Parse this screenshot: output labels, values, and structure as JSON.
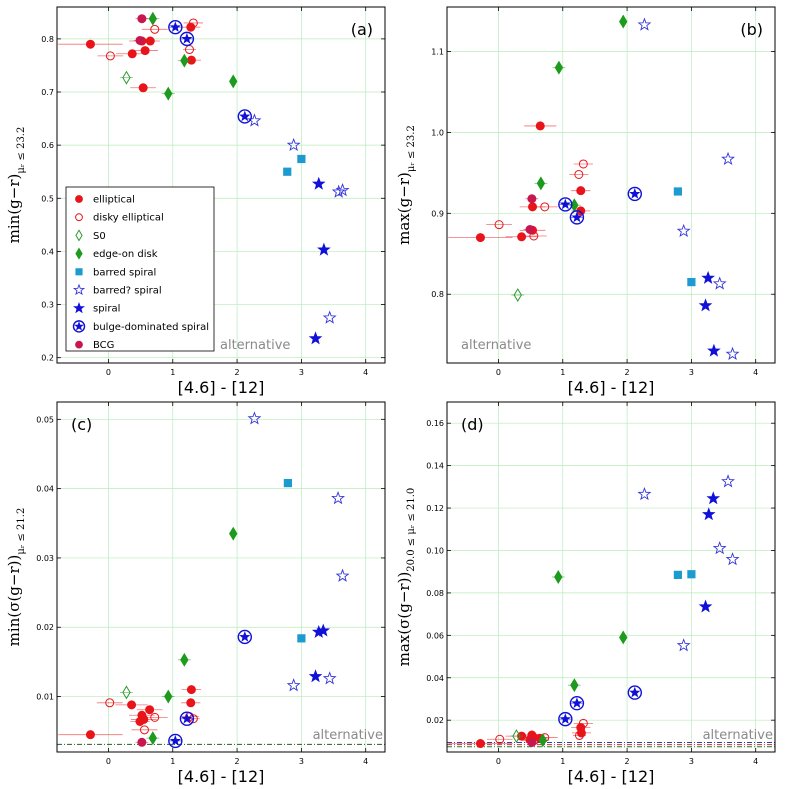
{
  "figure": {
    "watermark": "alternative",
    "xlabel": "[4.6] - [12]",
    "xticks": [
      "0",
      "1",
      "2",
      "3",
      "4"
    ],
    "legend": [
      {
        "key": "elliptical",
        "label": "elliptical",
        "marker": "circle",
        "fill": "#e8141a",
        "stroke": "#e8141a"
      },
      {
        "key": "disky",
        "label": "disky elliptical",
        "marker": "circle-open",
        "fill": "none",
        "stroke": "#e8141a"
      },
      {
        "key": "s0",
        "label": "S0",
        "marker": "diamond-open",
        "fill": "none",
        "stroke": "#2e9a2e"
      },
      {
        "key": "edgeon",
        "label": "edge-on disk",
        "marker": "diamond",
        "fill": "#1e9a1e",
        "stroke": "#1e9a1e"
      },
      {
        "key": "barred",
        "label": "barred spiral",
        "marker": "square",
        "fill": "#1c9bd0",
        "stroke": "#1c9bd0"
      },
      {
        "key": "barredq",
        "label": "barred? spiral",
        "marker": "star-open",
        "fill": "none",
        "stroke": "#3535d8"
      },
      {
        "key": "spiral",
        "label": "spiral",
        "marker": "star",
        "fill": "#1010d8",
        "stroke": "#1010d8"
      },
      {
        "key": "bulge",
        "label": "bulge-dominated spiral",
        "marker": "star-circle",
        "fill": "#1010d8",
        "stroke": "#1010d8"
      },
      {
        "key": "bcg",
        "label": "BCG",
        "marker": "circle",
        "fill": "#c8174e",
        "stroke": "#c8174e"
      }
    ]
  },
  "chart_data": [
    {
      "type": "scatter",
      "panel": "(a)",
      "ylabel_tex": "min(g−r)",
      "ylabel_sub": "μᵣ ≤ 23.2",
      "xlim": [
        -0.8,
        4.3
      ],
      "ylim": [
        0.19,
        0.86
      ],
      "xticks": [
        0,
        1,
        2,
        3,
        4
      ],
      "yticks": [
        0.2,
        0.3,
        0.4,
        0.5,
        0.6,
        0.7,
        0.8
      ],
      "ytick_labels": [
        "0.2",
        "0.3",
        "0.4",
        "0.5",
        "0.6",
        "0.7",
        "0.8"
      ],
      "has_legend": true,
      "series": [
        {
          "key": "elliptical",
          "points": [
            [
              -0.28,
              0.79,
              0.5
            ],
            [
              0.37,
              0.772,
              0.25
            ],
            [
              0.52,
              0.796,
              0.2
            ],
            [
              0.57,
              0.778,
              0.2
            ],
            [
              0.54,
              0.708,
              0.2
            ],
            [
              0.65,
              0.796,
              0.15
            ],
            [
              1.28,
              0.822,
              0.15
            ],
            [
              1.29,
              0.76,
              0.15
            ]
          ]
        },
        {
          "key": "disky",
          "points": [
            [
              0.03,
              0.768,
              0.2
            ],
            [
              0.72,
              0.818,
              0.2
            ],
            [
              1.32,
              0.83,
              0.15
            ],
            [
              1.26,
              0.78,
              0.1
            ]
          ]
        },
        {
          "key": "s0",
          "points": [
            [
              0.28,
              0.727,
              0.1
            ]
          ]
        },
        {
          "key": "edgeon",
          "points": [
            [
              0.69,
              0.838,
              0.1
            ],
            [
              0.93,
              0.697,
              0.1
            ],
            [
              1.18,
              0.759,
              0.1
            ],
            [
              1.94,
              0.72,
              0.05
            ]
          ]
        },
        {
          "key": "barred",
          "points": [
            [
              2.78,
              0.55,
              0
            ],
            [
              3.0,
              0.574,
              0
            ]
          ]
        },
        {
          "key": "barredq",
          "points": [
            [
              2.27,
              0.646,
              0
            ],
            [
              2.88,
              0.6,
              0
            ],
            [
              3.58,
              0.512,
              0
            ],
            [
              3.64,
              0.515,
              0
            ],
            [
              3.44,
              0.275,
              0
            ]
          ]
        },
        {
          "key": "spiral",
          "points": [
            [
              3.27,
              0.527,
              0
            ],
            [
              3.35,
              0.403,
              0
            ],
            [
              3.22,
              0.236,
              0
            ]
          ]
        },
        {
          "key": "bulge",
          "points": [
            [
              1.04,
              0.822,
              0.1
            ],
            [
              1.22,
              0.8,
              0.1
            ],
            [
              2.12,
              0.654,
              0.05
            ]
          ]
        },
        {
          "key": "bcg",
          "points": [
            [
              0.52,
              0.838,
              0.1
            ],
            [
              0.49,
              0.797,
              0.1
            ]
          ]
        }
      ],
      "hlines": []
    },
    {
      "type": "scatter",
      "panel": "(b)",
      "ylabel_tex": "max(g−r)",
      "ylabel_sub": "μᵣ ≤ 23.2",
      "xlim": [
        -0.8,
        4.3
      ],
      "ylim": [
        0.715,
        1.155
      ],
      "xticks": [
        0,
        1,
        2,
        3,
        4
      ],
      "yticks": [
        0.8,
        0.9,
        1.0,
        1.1
      ],
      "ytick_labels": [
        "0.8",
        "0.9",
        "1.0",
        "1.1"
      ],
      "has_legend": false,
      "series": [
        {
          "key": "elliptical",
          "points": [
            [
              -0.28,
              0.87,
              0.5
            ],
            [
              0.36,
              0.871,
              0.25
            ],
            [
              0.53,
              0.908,
              0.2
            ],
            [
              0.53,
              0.879,
              0.2
            ],
            [
              0.65,
              1.008,
              0.25
            ],
            [
              1.28,
              0.928,
              0.15
            ],
            [
              1.28,
              0.903,
              0.15
            ]
          ]
        },
        {
          "key": "disky",
          "points": [
            [
              0.01,
              0.886,
              0.2
            ],
            [
              0.55,
              0.872,
              0.2
            ],
            [
              0.72,
              0.908,
              0.2
            ],
            [
              1.32,
              0.961,
              0.15
            ],
            [
              1.25,
              0.948,
              0.15
            ]
          ]
        },
        {
          "key": "s0",
          "points": [
            [
              0.3,
              0.799,
              0.1
            ]
          ]
        },
        {
          "key": "edgeon",
          "points": [
            [
              0.66,
              0.937,
              0.1
            ],
            [
              0.94,
              1.08,
              0.1
            ],
            [
              1.18,
              0.91,
              0.1
            ],
            [
              1.94,
              1.137,
              0.05
            ]
          ]
        },
        {
          "key": "barred",
          "points": [
            [
              2.79,
              0.927,
              0
            ],
            [
              3.0,
              0.815,
              0
            ]
          ]
        },
        {
          "key": "barredq",
          "points": [
            [
              2.27,
              1.133,
              0
            ],
            [
              3.57,
              0.967,
              0
            ],
            [
              2.88,
              0.878,
              0
            ],
            [
              3.44,
              0.813,
              0
            ],
            [
              3.64,
              0.726,
              0
            ]
          ]
        },
        {
          "key": "spiral",
          "points": [
            [
              3.26,
              0.82,
              0
            ],
            [
              3.22,
              0.786,
              0
            ],
            [
              3.35,
              0.73,
              0
            ]
          ]
        },
        {
          "key": "bulge",
          "points": [
            [
              1.04,
              0.911,
              0.1
            ],
            [
              1.22,
              0.895,
              0.1
            ],
            [
              2.12,
              0.924,
              0.05
            ]
          ]
        },
        {
          "key": "bcg",
          "points": [
            [
              0.52,
              0.918,
              0.1
            ],
            [
              0.49,
              0.88,
              0.1
            ]
          ]
        }
      ],
      "hlines": []
    },
    {
      "type": "scatter",
      "panel": "(c)",
      "ylabel_tex": "min(σ(g−r))",
      "ylabel_sub": "μᵣ ≤ 21.2",
      "xlim": [
        -0.8,
        4.3
      ],
      "ylim": [
        0.002,
        0.0525
      ],
      "xticks": [
        0,
        1,
        2,
        3,
        4
      ],
      "yticks": [
        0.01,
        0.02,
        0.03,
        0.04,
        0.05
      ],
      "ytick_labels": [
        "0.01",
        "0.02",
        "0.03",
        "0.04",
        "0.05"
      ],
      "has_legend": false,
      "series": [
        {
          "key": "elliptical",
          "points": [
            [
              -0.28,
              0.0045,
              0.5
            ],
            [
              0.36,
              0.0088,
              0.25
            ],
            [
              0.52,
              0.0073,
              0.2
            ],
            [
              0.64,
              0.0081,
              0.2
            ],
            [
              0.55,
              0.0067,
              0.2
            ],
            [
              0.49,
              0.0064,
              0.15
            ],
            [
              1.29,
              0.011,
              0.15
            ],
            [
              1.28,
              0.0091,
              0.15
            ]
          ]
        },
        {
          "key": "disky",
          "points": [
            [
              0.02,
              0.0091,
              0.2
            ],
            [
              0.56,
              0.0052,
              0.2
            ],
            [
              0.72,
              0.007,
              0.2
            ],
            [
              1.26,
              0.0071,
              0.15
            ],
            [
              1.32,
              0.0068,
              0.1
            ]
          ]
        },
        {
          "key": "s0",
          "points": [
            [
              0.28,
              0.0106,
              0.1
            ]
          ]
        },
        {
          "key": "edgeon",
          "points": [
            [
              0.93,
              0.01,
              0.1
            ],
            [
              1.18,
              0.0153,
              0.1
            ],
            [
              0.69,
              0.004,
              0.1
            ],
            [
              1.94,
              0.0335,
              0.05
            ]
          ]
        },
        {
          "key": "barred",
          "points": [
            [
              2.79,
              0.0408,
              0
            ],
            [
              3.0,
              0.0184,
              0
            ]
          ]
        },
        {
          "key": "barredq",
          "points": [
            [
              2.27,
              0.0501,
              0
            ],
            [
              3.57,
              0.0386,
              0
            ],
            [
              3.64,
              0.0274,
              0
            ],
            [
              2.88,
              0.0116,
              0
            ],
            [
              3.44,
              0.0126,
              0
            ]
          ]
        },
        {
          "key": "spiral",
          "points": [
            [
              3.27,
              0.0193,
              0
            ],
            [
              3.34,
              0.0195,
              0
            ],
            [
              3.22,
              0.0129,
              0
            ]
          ]
        },
        {
          "key": "bulge",
          "points": [
            [
              1.04,
              0.0036,
              0.1
            ],
            [
              1.22,
              0.0068,
              0.1
            ],
            [
              2.12,
              0.0186,
              0.05
            ]
          ]
        },
        {
          "key": "bcg",
          "points": [
            [
              0.52,
              0.0034,
              0.1
            ]
          ]
        }
      ],
      "hlines": [
        {
          "y": 0.0031,
          "color": "#2a5a2a",
          "dash": "5,2,1,2"
        }
      ]
    },
    {
      "type": "scatter",
      "panel": "(d)",
      "ylabel_tex": "max(σ(g−r))",
      "ylabel_sub": "20.0 ≤ μᵣ ≤ 21.0",
      "xlim": [
        -0.8,
        4.3
      ],
      "ylim": [
        0.005,
        0.17
      ],
      "xticks": [
        0,
        1,
        2,
        3,
        4
      ],
      "yticks": [
        0.02,
        0.04,
        0.06,
        0.08,
        0.1,
        0.12,
        0.14,
        0.16
      ],
      "ytick_labels": [
        "0.02",
        "0.04",
        "0.06",
        "0.08",
        "0.10",
        "0.12",
        "0.14",
        "0.16"
      ],
      "has_legend": false,
      "series": [
        {
          "key": "elliptical",
          "points": [
            [
              -0.28,
              0.009,
              0.5
            ],
            [
              0.36,
              0.0125,
              0.25
            ],
            [
              0.52,
              0.013,
              0.2
            ],
            [
              0.55,
              0.0118,
              0.2
            ],
            [
              0.49,
              0.0108,
              0.2
            ],
            [
              0.64,
              0.0115,
              0.15
            ],
            [
              1.28,
              0.0165,
              0.15
            ],
            [
              1.29,
              0.014,
              0.15
            ]
          ]
        },
        {
          "key": "disky",
          "points": [
            [
              0.02,
              0.011,
              0.2
            ],
            [
              0.56,
              0.0105,
              0.2
            ],
            [
              0.72,
              0.0118,
              0.2
            ],
            [
              1.32,
              0.0185,
              0.15
            ],
            [
              1.26,
              0.0128,
              0.1
            ]
          ]
        },
        {
          "key": "s0",
          "points": [
            [
              0.28,
              0.0125,
              0.1
            ]
          ]
        },
        {
          "key": "edgeon",
          "points": [
            [
              0.93,
              0.0875,
              0.1
            ],
            [
              1.18,
              0.0365,
              0.1
            ],
            [
              0.69,
              0.0105,
              0.1
            ],
            [
              1.94,
              0.059,
              0.05
            ]
          ]
        },
        {
          "key": "barred",
          "points": [
            [
              2.79,
              0.0885,
              0
            ],
            [
              3.0,
              0.0888,
              0
            ]
          ]
        },
        {
          "key": "barredq",
          "points": [
            [
              2.27,
              0.1265,
              0
            ],
            [
              3.57,
              0.1325,
              0
            ],
            [
              3.44,
              0.101,
              0
            ],
            [
              3.64,
              0.0958,
              0
            ],
            [
              2.88,
              0.0552,
              0
            ]
          ]
        },
        {
          "key": "spiral",
          "points": [
            [
              3.34,
              0.1245,
              0
            ],
            [
              3.27,
              0.117,
              0
            ],
            [
              3.22,
              0.0735,
              0
            ]
          ]
        },
        {
          "key": "bulge",
          "points": [
            [
              1.04,
              0.0205,
              0.1
            ],
            [
              1.22,
              0.028,
              0.1
            ],
            [
              2.12,
              0.033,
              0.05
            ]
          ]
        },
        {
          "key": "bcg",
          "points": [
            [
              0.52,
              0.0095,
              0.1
            ]
          ]
        }
      ],
      "hlines": [
        {
          "y": 0.0095,
          "color": "#3a3aa8",
          "dash": "5,2,1,2"
        },
        {
          "y": 0.0085,
          "color": "#c03a3a",
          "dash": "5,2,1,2"
        },
        {
          "y": 0.0075,
          "color": "#2a7a2a",
          "dash": "5,2,1,2"
        }
      ]
    }
  ]
}
